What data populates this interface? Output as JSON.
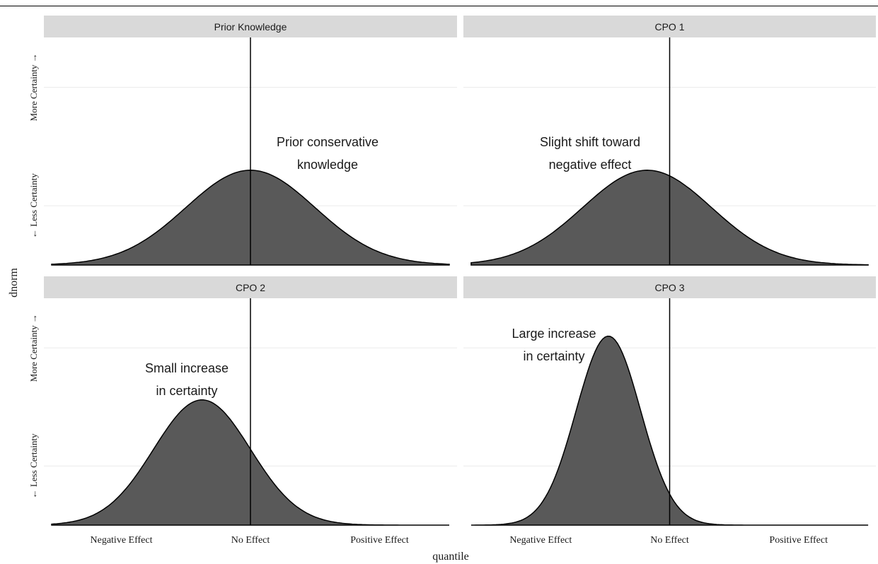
{
  "chart_data": {
    "type": "area",
    "xlabel": "quantile",
    "ylabel": "dnorm",
    "x_tick_labels": [
      "Negative Effect",
      "No Effect",
      "Positive Effect"
    ],
    "y_tick_labels": [
      "← Less Certainty",
      "More Certainty →"
    ],
    "grid": true,
    "reference_line": {
      "x": 0
    },
    "facets": [
      {
        "title": "Prior Knowledge",
        "annotation": [
          "Prior conservative",
          "knowledge"
        ],
        "mean": 0.0,
        "sd": 1.0,
        "peak_density": 0.4
      },
      {
        "title": "CPO 1",
        "annotation": [
          "Slight shift toward",
          "negative effect"
        ],
        "mean": -0.35,
        "sd": 1.0,
        "peak_density": 0.4
      },
      {
        "title": "CPO 2",
        "annotation": [
          "Small increase",
          "in certainty"
        ],
        "mean": -0.75,
        "sd": 0.75,
        "peak_density": 0.53
      },
      {
        "title": "CPO 3",
        "annotation": [
          "Large increase",
          "in certainty"
        ],
        "mean": -0.95,
        "sd": 0.5,
        "peak_density": 0.8
      }
    ],
    "colors": {
      "fill": "#595959",
      "strip": "#d9d9d9",
      "grid": "#ebebeb"
    }
  }
}
